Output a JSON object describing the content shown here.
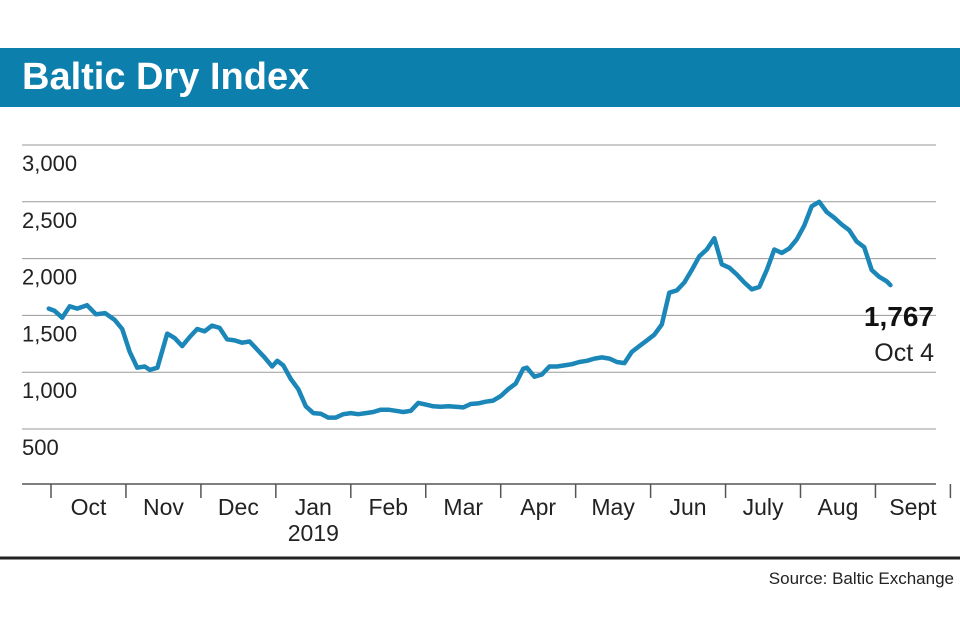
{
  "header": {
    "title": "Baltic Dry Index"
  },
  "footer": {
    "source": "Source: Baltic Exchange"
  },
  "colors": {
    "accent": "#0c7fad",
    "line": "#1b86b8",
    "grid": "#9a9a9a",
    "axis": "#555555"
  },
  "chart_data": {
    "type": "line",
    "title": "Baltic Dry Index",
    "xlabel": "",
    "ylabel": "",
    "y_ticks": [
      "3,000",
      "2,500",
      "2,000",
      "1,500",
      "1,000",
      "500"
    ],
    "ylim": [
      250,
      3000
    ],
    "x_ticks": [
      {
        "label": "Oct",
        "sub": ""
      },
      {
        "label": "Nov",
        "sub": ""
      },
      {
        "label": "Dec",
        "sub": ""
      },
      {
        "label": "Jan",
        "sub": "2019"
      },
      {
        "label": "Feb",
        "sub": ""
      },
      {
        "label": "Mar",
        "sub": ""
      },
      {
        "label": "Apr",
        "sub": ""
      },
      {
        "label": "May",
        "sub": ""
      },
      {
        "label": "Jun",
        "sub": ""
      },
      {
        "label": "July",
        "sub": ""
      },
      {
        "label": "Aug",
        "sub": ""
      },
      {
        "label": "Sept",
        "sub": ""
      }
    ],
    "annotation": {
      "value": "1,767",
      "date": "Oct 4"
    },
    "series": [
      {
        "name": "Baltic Dry Index",
        "x_unit": "months since Oct 1, 2018",
        "points": [
          [
            -0.03,
            1560
          ],
          [
            0.05,
            1540
          ],
          [
            0.15,
            1480
          ],
          [
            0.25,
            1580
          ],
          [
            0.35,
            1560
          ],
          [
            0.48,
            1590
          ],
          [
            0.6,
            1510
          ],
          [
            0.72,
            1520
          ],
          [
            0.85,
            1460
          ],
          [
            0.95,
            1380
          ],
          [
            1.05,
            1180
          ],
          [
            1.15,
            1040
          ],
          [
            1.25,
            1050
          ],
          [
            1.32,
            1020
          ],
          [
            1.42,
            1040
          ],
          [
            1.55,
            1340
          ],
          [
            1.65,
            1300
          ],
          [
            1.75,
            1230
          ],
          [
            1.85,
            1310
          ],
          [
            1.95,
            1380
          ],
          [
            2.05,
            1360
          ],
          [
            2.15,
            1410
          ],
          [
            2.25,
            1390
          ],
          [
            2.35,
            1290
          ],
          [
            2.45,
            1280
          ],
          [
            2.55,
            1260
          ],
          [
            2.65,
            1270
          ],
          [
            2.75,
            1200
          ],
          [
            2.85,
            1130
          ],
          [
            2.95,
            1050
          ],
          [
            3.02,
            1100
          ],
          [
            3.1,
            1060
          ],
          [
            3.2,
            940
          ],
          [
            3.3,
            850
          ],
          [
            3.4,
            700
          ],
          [
            3.5,
            640
          ],
          [
            3.6,
            635
          ],
          [
            3.7,
            600
          ],
          [
            3.8,
            600
          ],
          [
            3.9,
            630
          ],
          [
            4.0,
            640
          ],
          [
            4.1,
            630
          ],
          [
            4.2,
            640
          ],
          [
            4.3,
            650
          ],
          [
            4.4,
            670
          ],
          [
            4.5,
            670
          ],
          [
            4.6,
            660
          ],
          [
            4.7,
            650
          ],
          [
            4.8,
            660
          ],
          [
            4.9,
            730
          ],
          [
            5.0,
            715
          ],
          [
            5.1,
            700
          ],
          [
            5.2,
            695
          ],
          [
            5.3,
            700
          ],
          [
            5.4,
            695
          ],
          [
            5.5,
            690
          ],
          [
            5.6,
            720
          ],
          [
            5.7,
            725
          ],
          [
            5.8,
            740
          ],
          [
            5.9,
            750
          ],
          [
            6.0,
            790
          ],
          [
            6.1,
            850
          ],
          [
            6.2,
            900
          ],
          [
            6.3,
            1030
          ],
          [
            6.35,
            1040
          ],
          [
            6.45,
            960
          ],
          [
            6.55,
            980
          ],
          [
            6.65,
            1050
          ],
          [
            6.75,
            1050
          ],
          [
            6.85,
            1060
          ],
          [
            6.95,
            1070
          ],
          [
            7.05,
            1090
          ],
          [
            7.15,
            1100
          ],
          [
            7.25,
            1120
          ],
          [
            7.35,
            1130
          ],
          [
            7.45,
            1120
          ],
          [
            7.55,
            1090
          ],
          [
            7.65,
            1080
          ],
          [
            7.75,
            1180
          ],
          [
            7.85,
            1230
          ],
          [
            7.95,
            1280
          ],
          [
            8.05,
            1330
          ],
          [
            8.15,
            1420
          ],
          [
            8.25,
            1700
          ],
          [
            8.35,
            1720
          ],
          [
            8.45,
            1790
          ],
          [
            8.55,
            1900
          ],
          [
            8.65,
            2020
          ],
          [
            8.75,
            2080
          ],
          [
            8.85,
            2180
          ],
          [
            8.95,
            1950
          ],
          [
            9.05,
            1920
          ],
          [
            9.15,
            1860
          ],
          [
            9.25,
            1790
          ],
          [
            9.35,
            1730
          ],
          [
            9.45,
            1750
          ],
          [
            9.55,
            1900
          ],
          [
            9.65,
            2080
          ],
          [
            9.75,
            2050
          ],
          [
            9.85,
            2090
          ],
          [
            9.95,
            2170
          ],
          [
            10.05,
            2290
          ],
          [
            10.15,
            2460
          ],
          [
            10.25,
            2500
          ],
          [
            10.35,
            2410
          ],
          [
            10.45,
            2360
          ],
          [
            10.55,
            2300
          ],
          [
            10.65,
            2250
          ],
          [
            10.75,
            2150
          ],
          [
            10.85,
            2100
          ],
          [
            10.95,
            1900
          ],
          [
            11.05,
            1840
          ],
          [
            11.15,
            1800
          ],
          [
            11.2,
            1767
          ]
        ]
      }
    ]
  }
}
